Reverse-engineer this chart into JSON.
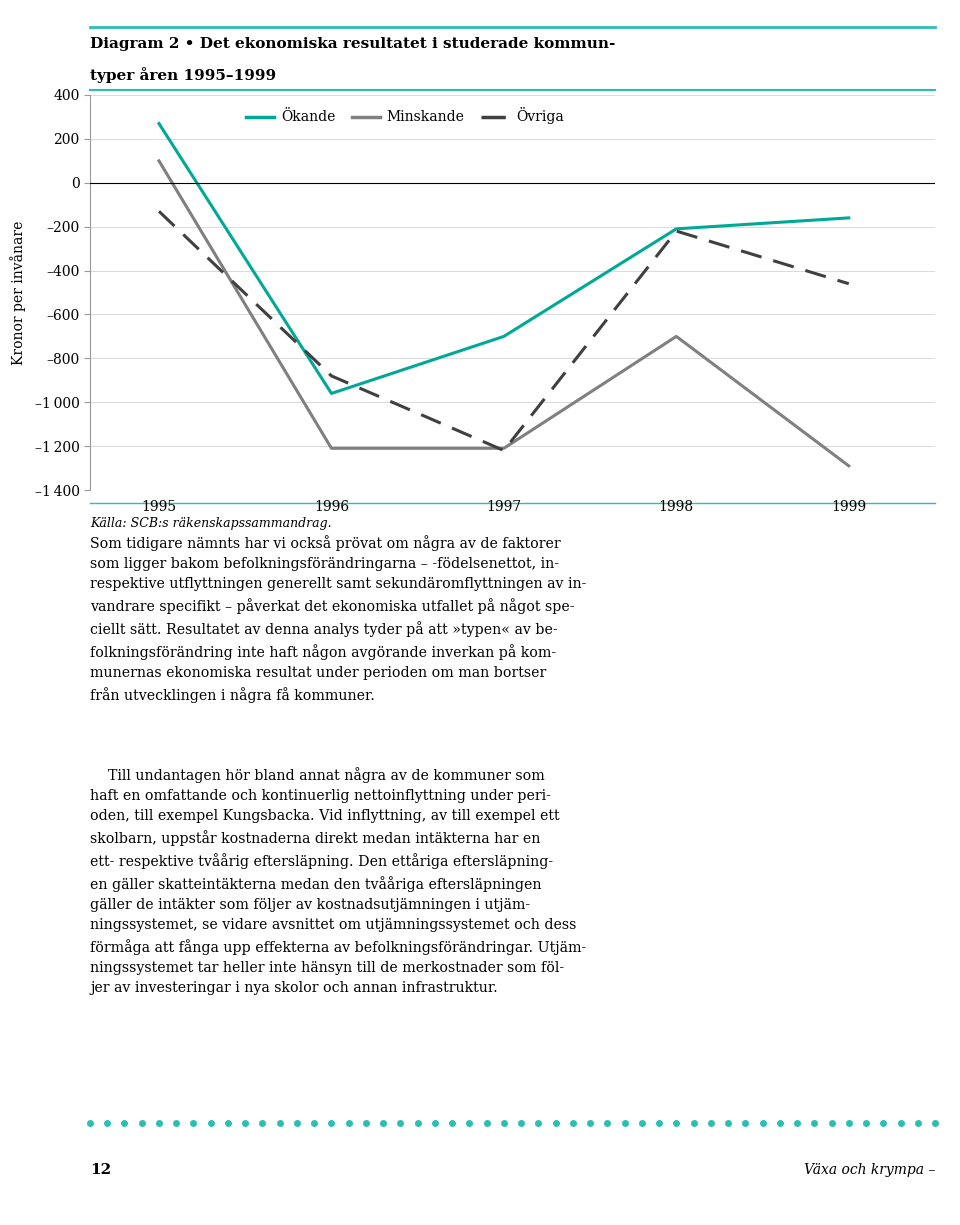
{
  "title_line1": "Diagram 2 • Det ekonomiska resultatet i studerade kommun-",
  "title_line2": "typer åren 1995–1999",
  "years": [
    1995,
    1996,
    1997,
    1998,
    1999
  ],
  "okande": [
    270,
    -960,
    -700,
    -210,
    -160
  ],
  "minskande": [
    100,
    -1210,
    -1210,
    -700,
    -1290
  ],
  "ovriga": [
    -130,
    -880,
    -1220,
    -220,
    -460
  ],
  "ylabel": "Kronor per invånare",
  "ylim": [
    -1400,
    400
  ],
  "yticks": [
    400,
    200,
    0,
    -200,
    -400,
    -600,
    -800,
    -1000,
    -1200,
    -1400
  ],
  "legend_okande": "Ökande",
  "legend_minskande": "Minskande",
  "legend_ovriga": "Övriga",
  "color_okande": "#00A896",
  "color_minskande": "#808080",
  "color_ovriga": "#404040",
  "source_text": "Källa: SCB:s räkenskapssammandrag.",
  "page_number": "12",
  "page_right_text": "Växa och krympa –",
  "background_color": "#FFFFFF",
  "dot_color": "#2BBFB3"
}
